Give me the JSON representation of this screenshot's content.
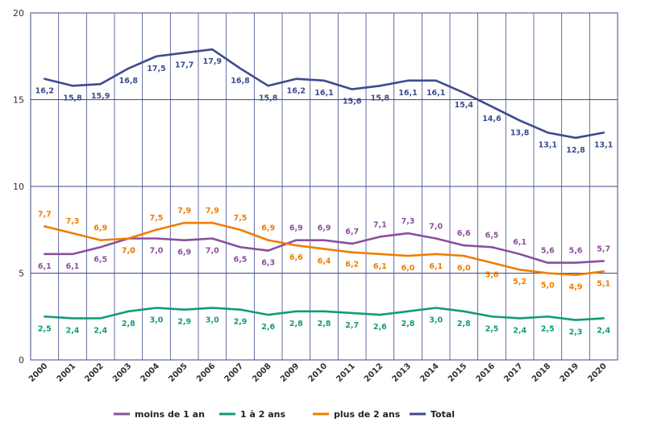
{
  "chart_data": {
    "type": "line",
    "title": "",
    "xlabel": "",
    "ylabel": "",
    "ylim": [
      0,
      20
    ],
    "yticks": [
      0,
      5,
      10,
      15,
      20
    ],
    "grid": true,
    "legend_placement": "bottom",
    "x": [
      "2000",
      "2001",
      "2002",
      "2003",
      "2004",
      "2005",
      "2006",
      "2007",
      "2008",
      "2009",
      "2010",
      "2011",
      "2012",
      "2013",
      "2014",
      "2015",
      "2016",
      "2017",
      "2018",
      "2019",
      "2020"
    ],
    "series": [
      {
        "name": "moins de 1 an",
        "color": "#8b4f9e",
        "values": [
          6.1,
          6.1,
          6.5,
          7.0,
          7.0,
          6.9,
          7.0,
          6.5,
          6.3,
          6.9,
          6.9,
          6.7,
          7.1,
          7.3,
          7.0,
          6.6,
          6.5,
          6.1,
          5.6,
          5.6,
          5.7
        ],
        "labels": [
          "6,1",
          "6,1",
          "6,5",
          "7,0",
          "7,0",
          "6,9",
          "7,0",
          "6,5",
          "6,3",
          "6,9",
          "6,9",
          "6,7",
          "7,1",
          "7,3",
          "7,0",
          "6,6",
          "6,5",
          "6,1",
          "5,6",
          "5,6",
          "5,7"
        ]
      },
      {
        "name": "1 à 2 ans",
        "color": "#109b7c",
        "values": [
          2.5,
          2.4,
          2.4,
          2.8,
          3.0,
          2.9,
          3.0,
          2.9,
          2.6,
          2.8,
          2.8,
          2.7,
          2.6,
          2.8,
          3.0,
          2.8,
          2.5,
          2.4,
          2.5,
          2.3,
          2.4
        ],
        "labels": [
          "2,5",
          "2,4",
          "2,4",
          "2,8",
          "3,0",
          "2,9",
          "3,0",
          "2,9",
          "2,6",
          "2,8",
          "2,8",
          "2,7",
          "2,6",
          "2,8",
          "3,0",
          "2,8",
          "2,5",
          "2,4",
          "2,5",
          "2,3",
          "2,4"
        ]
      },
      {
        "name": "plus de 2 ans",
        "color": "#f07d00",
        "values": [
          7.7,
          7.3,
          6.9,
          7.0,
          7.5,
          7.9,
          7.9,
          7.5,
          6.9,
          6.6,
          6.4,
          6.2,
          6.1,
          6.0,
          6.1,
          6.0,
          5.6,
          5.2,
          5.0,
          4.9,
          5.1
        ],
        "labels": [
          "7,7",
          "7,3",
          "6,9",
          "7,0",
          "7,5",
          "7,9",
          "7,9",
          "7,5",
          "6,9",
          "6,6",
          "6,4",
          "6,2",
          "6,1",
          "6,0",
          "6,1",
          "6,0",
          "5,6",
          "5,2",
          "5,0",
          "4,9",
          "5,1"
        ]
      },
      {
        "name": "Total",
        "color": "#3d4b8e",
        "values": [
          16.2,
          15.8,
          15.9,
          16.8,
          17.5,
          17.7,
          17.9,
          16.8,
          15.8,
          16.2,
          16.1,
          15.6,
          15.8,
          16.1,
          16.1,
          15.4,
          14.6,
          13.8,
          13.1,
          12.8,
          13.1
        ],
        "labels": [
          "16,2",
          "15,8",
          "15,9",
          "16,8",
          "17,5",
          "17,7",
          "17,9",
          "16,8",
          "15,8",
          "16,2",
          "16,1",
          "15,6",
          "15,8",
          "16,1",
          "16,1",
          "15,4",
          "14,6",
          "13,8",
          "13,1",
          "12,8",
          "13,1"
        ]
      }
    ]
  }
}
